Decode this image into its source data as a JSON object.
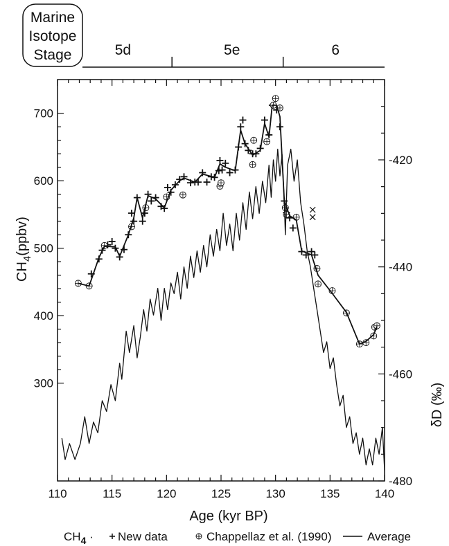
{
  "stage_box": {
    "line1": "Marine",
    "line2": "Isotope",
    "line3": "Stage"
  },
  "stages": [
    {
      "label": "5d",
      "age": 116
    },
    {
      "label": "5e",
      "age": 126
    },
    {
      "label": "6",
      "age": 135.5
    }
  ],
  "stage_boundaries": [
    120.5,
    130.7
  ],
  "legend": {
    "prefix": "CH",
    "prefix_sub": "4",
    "prefix_sep": " · ",
    "new_data": "New data",
    "chappellaz": "Chappellaz et al. (1990)",
    "average": "Average"
  },
  "chart_data": {
    "type": "line",
    "xlabel": "Age (kyr BP)",
    "xlim": [
      110,
      140
    ],
    "x_ticks": [
      "110",
      "115",
      "120",
      "125",
      "130",
      "135",
      "140"
    ],
    "y_left": {
      "label_main": "CH",
      "label_sub": "4",
      "label_tail": "(ppbv)",
      "lim": [
        155,
        750
      ],
      "ticks": [
        "300",
        "400",
        "500",
        "600",
        "700"
      ]
    },
    "y_right": {
      "label": "δD (‰)",
      "lim": [
        -480,
        -405
      ],
      "ticks": [
        "-420",
        "-440",
        "-460",
        "-480"
      ]
    },
    "series": [
      {
        "name": "New data",
        "axis": "left",
        "marker": "plus",
        "points": [
          [
            113.1,
            462
          ],
          [
            113.8,
            484
          ],
          [
            114.1,
            497
          ],
          [
            114.6,
            505
          ],
          [
            115,
            510
          ],
          [
            115.3,
            500
          ],
          [
            115.7,
            487
          ],
          [
            116.1,
            498
          ],
          [
            116.5,
            520
          ],
          [
            116.8,
            552
          ],
          [
            117.0,
            540
          ],
          [
            117.3,
            575
          ],
          [
            117.8,
            540
          ],
          [
            118.0,
            552
          ],
          [
            118.3,
            580
          ],
          [
            118.6,
            570
          ],
          [
            119.0,
            575
          ],
          [
            119.5,
            562
          ],
          [
            119.8,
            559
          ],
          [
            120.1,
            590
          ],
          [
            120.4,
            583
          ],
          [
            120.8,
            594
          ],
          [
            121.2,
            602
          ],
          [
            121.6,
            606
          ],
          [
            122.2,
            597
          ],
          [
            122.6,
            598
          ],
          [
            122.9,
            598
          ],
          [
            123.3,
            612
          ],
          [
            123.7,
            598
          ],
          [
            124.1,
            606
          ],
          [
            124.4,
            605
          ],
          [
            124.8,
            615
          ],
          [
            124.9,
            630
          ],
          [
            125.1,
            616
          ],
          [
            125.4,
            626
          ],
          [
            125.8,
            612
          ],
          [
            126.3,
            616
          ],
          [
            126.6,
            650
          ],
          [
            126.8,
            680
          ],
          [
            127.0,
            690
          ],
          [
            127.2,
            655
          ],
          [
            127.5,
            645
          ],
          [
            127.9,
            640
          ],
          [
            128.2,
            640
          ],
          [
            128.6,
            648
          ],
          [
            129.0,
            690
          ],
          [
            129.4,
            668
          ],
          [
            129.7,
            712
          ],
          [
            130.1,
            705
          ],
          [
            130.4,
            680
          ],
          [
            130.8,
            570
          ],
          [
            131.0,
            553
          ],
          [
            131.3,
            545
          ],
          [
            131.6,
            530
          ],
          [
            132.4,
            495
          ],
          [
            132.8,
            490
          ],
          [
            133.3,
            495
          ],
          [
            133.6,
            490
          ]
        ]
      },
      {
        "name": "Chappellaz et al. (1990)",
        "axis": "left",
        "marker": "circle-plus",
        "points": [
          [
            111.9,
            448
          ],
          [
            112.9,
            444
          ],
          [
            114.3,
            504
          ],
          [
            116.8,
            532
          ],
          [
            118.1,
            560
          ],
          [
            120.0,
            576
          ],
          [
            121.5,
            579
          ],
          [
            124.9,
            592
          ],
          [
            125.0,
            597
          ],
          [
            127.9,
            624
          ],
          [
            128.0,
            660
          ],
          [
            129.2,
            658
          ],
          [
            129.8,
            712
          ],
          [
            130.0,
            722
          ],
          [
            130.4,
            708
          ],
          [
            130.9,
            560
          ],
          [
            131.0,
            550
          ],
          [
            131.9,
            546
          ],
          [
            133.8,
            470
          ],
          [
            133.9,
            447
          ],
          [
            135.2,
            437
          ],
          [
            136.5,
            404
          ],
          [
            137.7,
            358
          ],
          [
            138.3,
            360
          ],
          [
            139.0,
            370
          ],
          [
            139.1,
            383
          ],
          [
            139.3,
            385
          ]
        ]
      },
      {
        "name": "Xdata",
        "axis": "left",
        "marker": "x",
        "points": [
          [
            133.4,
            557
          ],
          [
            133.4,
            546
          ]
        ]
      },
      {
        "name": "Average",
        "axis": "left",
        "marker": "none",
        "points": [
          [
            111.9,
            448
          ],
          [
            112.9,
            444
          ],
          [
            113.8,
            486
          ],
          [
            114.3,
            503
          ],
          [
            115.3,
            502
          ],
          [
            115.7,
            488
          ],
          [
            116.5,
            520
          ],
          [
            117.0,
            545
          ],
          [
            117.3,
            575
          ],
          [
            117.8,
            545
          ],
          [
            118.3,
            578
          ],
          [
            119.0,
            573
          ],
          [
            119.8,
            560
          ],
          [
            120.4,
            586
          ],
          [
            121.2,
            600
          ],
          [
            121.6,
            604
          ],
          [
            122.6,
            598
          ],
          [
            123.3,
            610
          ],
          [
            124.4,
            605
          ],
          [
            124.9,
            625
          ],
          [
            125.4,
            620
          ],
          [
            126.3,
            615
          ],
          [
            126.8,
            675
          ],
          [
            127.2,
            655
          ],
          [
            127.9,
            638
          ],
          [
            128.6,
            645
          ],
          [
            129.0,
            685
          ],
          [
            129.4,
            665
          ],
          [
            129.7,
            712
          ],
          [
            130.1,
            712
          ],
          [
            130.4,
            695
          ],
          [
            130.8,
            570
          ],
          [
            131.3,
            548
          ],
          [
            131.9,
            542
          ],
          [
            132.4,
            496
          ],
          [
            133.3,
            490
          ],
          [
            133.9,
            460
          ],
          [
            135.2,
            433
          ],
          [
            136.5,
            405
          ],
          [
            137.7,
            358
          ],
          [
            138.3,
            362
          ],
          [
            139.0,
            372
          ],
          [
            139.3,
            384
          ]
        ]
      },
      {
        "name": "δD",
        "axis": "right",
        "marker": "none",
        "points": [
          [
            110.4,
            -472
          ],
          [
            110.7,
            -476
          ],
          [
            111.1,
            -473
          ],
          [
            111.6,
            -476
          ],
          [
            112.1,
            -473
          ],
          [
            112.5,
            -468
          ],
          [
            112.9,
            -473
          ],
          [
            113.3,
            -469
          ],
          [
            113.7,
            -471
          ],
          [
            114.1,
            -465
          ],
          [
            114.5,
            -467
          ],
          [
            114.9,
            -462
          ],
          [
            115.3,
            -465
          ],
          [
            115.7,
            -458
          ],
          [
            115.9,
            -461
          ],
          [
            116.3,
            -452
          ],
          [
            116.6,
            -456
          ],
          [
            117.0,
            -451
          ],
          [
            117.3,
            -457
          ],
          [
            117.6,
            -453
          ],
          [
            117.9,
            -448
          ],
          [
            118.2,
            -452
          ],
          [
            118.5,
            -446
          ],
          [
            118.8,
            -449
          ],
          [
            119.2,
            -444
          ],
          [
            119.5,
            -450
          ],
          [
            119.8,
            -444
          ],
          [
            120.1,
            -448
          ],
          [
            120.4,
            -443
          ],
          [
            120.7,
            -445
          ],
          [
            121.0,
            -441
          ],
          [
            121.3,
            -446
          ],
          [
            121.6,
            -440
          ],
          [
            121.9,
            -444
          ],
          [
            122.2,
            -438
          ],
          [
            122.5,
            -442
          ],
          [
            122.8,
            -437
          ],
          [
            123.1,
            -441
          ],
          [
            123.4,
            -436
          ],
          [
            123.7,
            -440
          ],
          [
            124.0,
            -434
          ],
          [
            124.3,
            -438
          ],
          [
            124.6,
            -433
          ],
          [
            124.9,
            -437
          ],
          [
            125.2,
            -430
          ],
          [
            125.5,
            -436
          ],
          [
            125.8,
            -432
          ],
          [
            126.1,
            -437
          ],
          [
            126.4,
            -430
          ],
          [
            126.7,
            -435
          ],
          [
            127.0,
            -428
          ],
          [
            127.3,
            -433
          ],
          [
            127.6,
            -426
          ],
          [
            127.9,
            -431
          ],
          [
            128.2,
            -425
          ],
          [
            128.5,
            -430
          ],
          [
            128.8,
            -424
          ],
          [
            129.1,
            -428
          ],
          [
            129.4,
            -421
          ],
          [
            129.6,
            -427
          ],
          [
            129.8,
            -420
          ],
          [
            130.0,
            -424
          ],
          [
            130.2,
            -418
          ],
          [
            130.4,
            -423
          ],
          [
            130.6,
            -419
          ],
          [
            130.8,
            -428
          ],
          [
            130.9,
            -434
          ],
          [
            131.1,
            -421
          ],
          [
            131.4,
            -418
          ],
          [
            131.7,
            -424
          ],
          [
            132.0,
            -420
          ],
          [
            132.3,
            -428
          ],
          [
            132.6,
            -432
          ],
          [
            132.9,
            -437
          ],
          [
            133.2,
            -440
          ],
          [
            133.5,
            -444
          ],
          [
            133.8,
            -448
          ],
          [
            134.1,
            -452
          ],
          [
            134.4,
            -456
          ],
          [
            134.7,
            -454
          ],
          [
            135.0,
            -459
          ],
          [
            135.3,
            -457
          ],
          [
            135.6,
            -462
          ],
          [
            135.9,
            -466
          ],
          [
            136.2,
            -464
          ],
          [
            136.5,
            -470
          ],
          [
            136.8,
            -468
          ],
          [
            137.1,
            -473
          ],
          [
            137.4,
            -471
          ],
          [
            137.7,
            -475
          ],
          [
            138.0,
            -472
          ],
          [
            138.3,
            -477
          ],
          [
            138.6,
            -474
          ],
          [
            138.9,
            -477
          ],
          [
            139.2,
            -472
          ],
          [
            139.5,
            -475
          ],
          [
            139.8,
            -470
          ],
          [
            140.0,
            -478
          ]
        ]
      }
    ]
  }
}
